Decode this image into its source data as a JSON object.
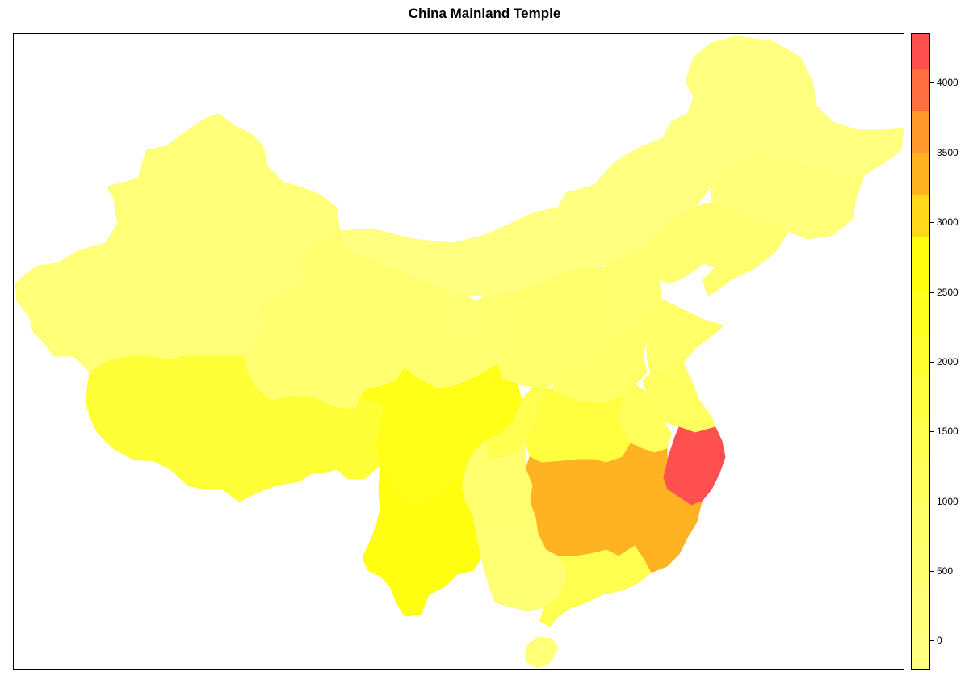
{
  "title": "China Mainland Temple",
  "legend": {
    "min": -200,
    "max": 4350,
    "bins": [
      {
        "from": -200,
        "to": 100,
        "color": "#ffff80"
      },
      {
        "from": 100,
        "to": 400,
        "color": "#ffff78"
      },
      {
        "from": 400,
        "to": 700,
        "color": "#ffff70"
      },
      {
        "from": 700,
        "to": 1000,
        "color": "#ffff68"
      },
      {
        "from": 1000,
        "to": 1300,
        "color": "#ffff5c"
      },
      {
        "from": 1300,
        "to": 1600,
        "color": "#ffff50"
      },
      {
        "from": 1600,
        "to": 1900,
        "color": "#ffff40"
      },
      {
        "from": 1900,
        "to": 2200,
        "color": "#ffff30"
      },
      {
        "from": 2200,
        "to": 2500,
        "color": "#ffff20"
      },
      {
        "from": 2500,
        "to": 2900,
        "color": "#ffff10"
      },
      {
        "from": 2900,
        "to": 3200,
        "color": "#ffd919"
      },
      {
        "from": 3200,
        "to": 3500,
        "color": "#ffb222"
      },
      {
        "from": 3500,
        "to": 3800,
        "color": "#ff9a2e"
      },
      {
        "from": 3800,
        "to": 4100,
        "color": "#ff7040"
      },
      {
        "from": 4100,
        "to": 4350,
        "color": "#ff5050"
      }
    ],
    "ticks": [
      {
        "value": 0,
        "label": "0"
      },
      {
        "value": 500,
        "label": "500"
      },
      {
        "value": 1000,
        "label": "1000"
      },
      {
        "value": 1500,
        "label": "1500"
      },
      {
        "value": 2000,
        "label": "2000"
      },
      {
        "value": 2500,
        "label": "2500"
      },
      {
        "value": 3000,
        "label": "3000"
      },
      {
        "value": 3500,
        "label": "3500"
      },
      {
        "value": 4000,
        "label": "4000"
      }
    ]
  },
  "regions": [
    {
      "id": "xinjiang",
      "color": "#ffff78"
    },
    {
      "id": "tibet",
      "color": "#ffff38"
    },
    {
      "id": "qinghai",
      "color": "#ffff70"
    },
    {
      "id": "gansu",
      "color": "#ffff70"
    },
    {
      "id": "inner-mongolia",
      "color": "#ffff80"
    },
    {
      "id": "heilongjiang",
      "color": "#ffff80"
    },
    {
      "id": "jilin",
      "color": "#ffff78"
    },
    {
      "id": "liaoning",
      "color": "#ffff70"
    },
    {
      "id": "hebei",
      "color": "#ffff70"
    },
    {
      "id": "shanxi",
      "color": "#ffff6c"
    },
    {
      "id": "shaanxi",
      "color": "#ffff6c"
    },
    {
      "id": "ningxia",
      "color": "#ffff74"
    },
    {
      "id": "henan",
      "color": "#ffff68"
    },
    {
      "id": "shandong",
      "color": "#ffff68"
    },
    {
      "id": "jiangsu",
      "color": "#ffff60"
    },
    {
      "id": "anhui",
      "color": "#ffff5c"
    },
    {
      "id": "hubei",
      "color": "#ffff40"
    },
    {
      "id": "sichuan",
      "color": "#ffff18"
    },
    {
      "id": "chongqing",
      "color": "#ffff50"
    },
    {
      "id": "yunnan",
      "color": "#ffff10"
    },
    {
      "id": "guizhou",
      "color": "#ffff70"
    },
    {
      "id": "guangxi",
      "color": "#ffff74"
    },
    {
      "id": "guangdong",
      "color": "#ffff50"
    },
    {
      "id": "hunan",
      "color": "#ffb222"
    },
    {
      "id": "jiangxi",
      "color": "#ffb222"
    },
    {
      "id": "fujian",
      "color": "#ffb222"
    },
    {
      "id": "zhejiang",
      "color": "#ff5050"
    },
    {
      "id": "hainan",
      "color": "#ffff78"
    }
  ]
}
